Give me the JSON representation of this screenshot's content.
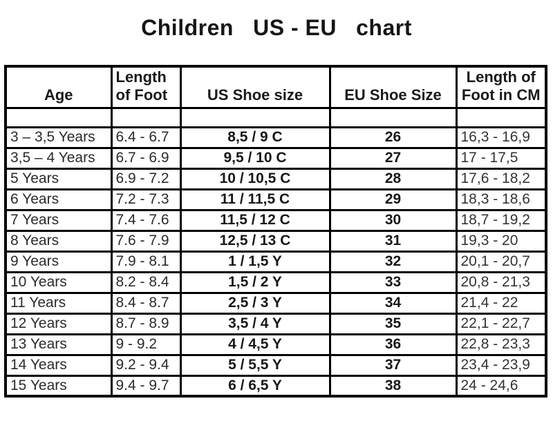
{
  "title_display": "Children   US - EU   chart",
  "chart_data": {
    "type": "table",
    "title": "Children US - EU chart",
    "columns": [
      "Age",
      "Length of Foot",
      "US Shoe size",
      "EU Shoe Size",
      "Length of Foot in CM"
    ],
    "rows": [
      [
        "3 – 3,5 Years",
        "6.4 - 6.7",
        "8,5 / 9 C",
        "26",
        "16,3 - 16,9"
      ],
      [
        "3,5 – 4 Years",
        "6.7 - 6.9",
        "9,5 / 10 C",
        "27",
        "17 - 17,5"
      ],
      [
        "5 Years",
        "6.9 - 7.2",
        "10 / 10,5 C",
        "28",
        "17,6 - 18,2"
      ],
      [
        "6 Years",
        "7.2 - 7.3",
        "11 / 11,5 C",
        "29",
        "18,3 - 18,6"
      ],
      [
        "7 Years",
        "7.4 - 7.6",
        "11,5 / 12 C",
        "30",
        "18,7 - 19,2"
      ],
      [
        "8 Years",
        "7.6 - 7.9",
        "12,5 / 13 C",
        "31",
        "19,3 - 20"
      ],
      [
        "9 Years",
        "7.9 - 8.1",
        "1 / 1,5 Y",
        "32",
        "20,1 - 20,7"
      ],
      [
        "10 Years",
        "8.2 - 8.4",
        "1,5 / 2 Y",
        "33",
        "20,8 - 21,3"
      ],
      [
        "11 Years",
        "8.4 - 8.7",
        "2,5 / 3 Y",
        "34",
        "21,4 - 22"
      ],
      [
        "12 Years",
        "8.7 - 8.9",
        "3,5 / 4 Y",
        "35",
        "22,1 - 22,7"
      ],
      [
        "13 Years",
        "9 - 9.2",
        "4 / 4,5 Y",
        "36",
        "22,8 - 23,3"
      ],
      [
        "14 Years",
        "9.2 - 9.4",
        "5 / 5,5 Y",
        "37",
        "23,4 - 23,9"
      ],
      [
        "15 Years",
        "9.4 - 9.7",
        "6 / 6,5 Y",
        "38",
        "24 - 24,6"
      ]
    ]
  }
}
